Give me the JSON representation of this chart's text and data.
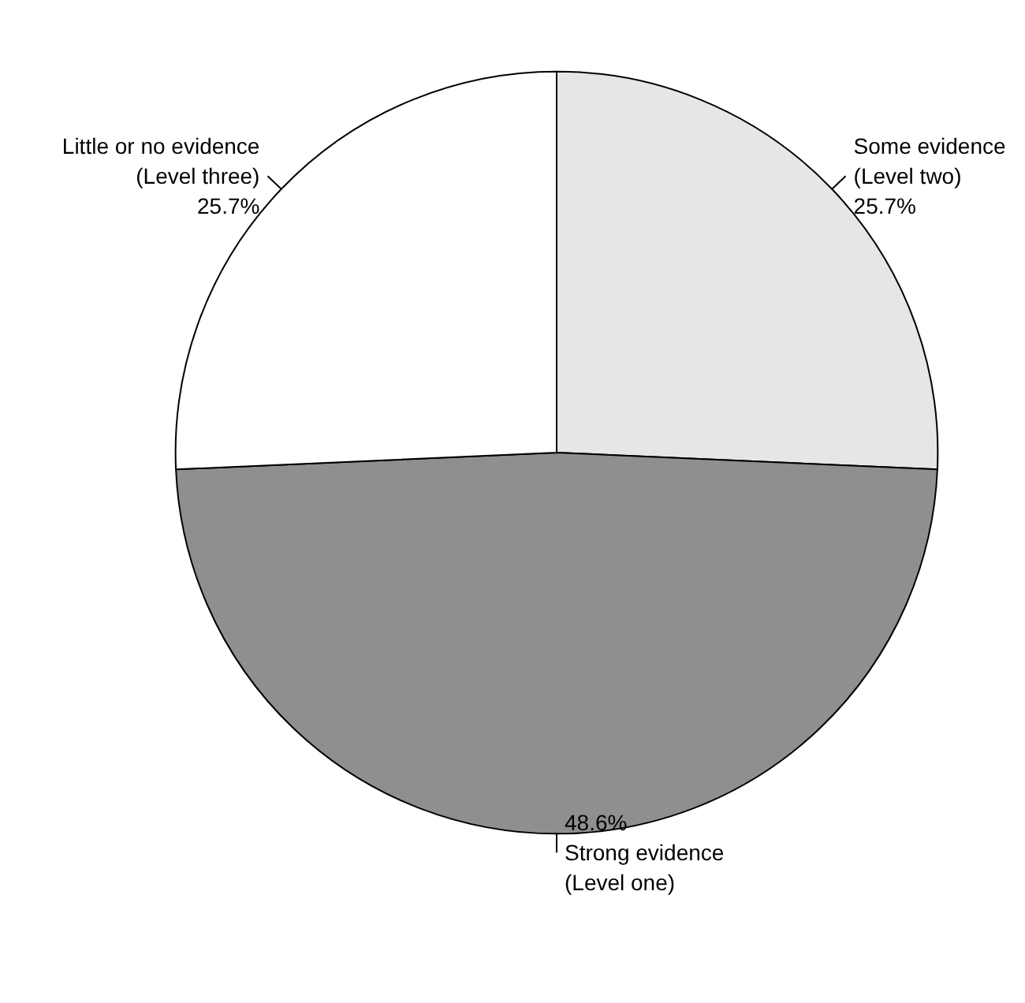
{
  "chart_data": {
    "type": "pie",
    "categories": [
      "Some evidence (Level two)",
      "Strong evidence (Level one)",
      "Little or no evidence (Level three)"
    ],
    "values": [
      25.7,
      48.6,
      25.7
    ],
    "colors": [
      "#e6e6e6",
      "#8f8f8f",
      "#ffffff"
    ],
    "value_labels": [
      "25.7%",
      "48.6%",
      "25.7%"
    ],
    "legend": false
  }
}
